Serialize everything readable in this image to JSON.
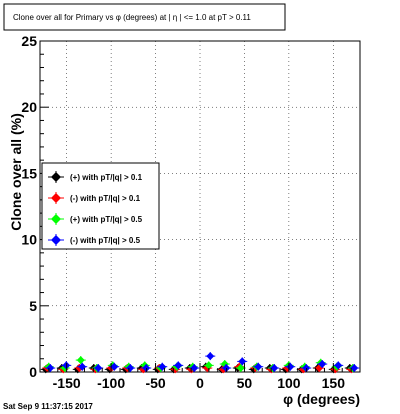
{
  "chart_data": {
    "type": "scatter",
    "title": "Clone  over all for Primary vs φ (degrees) at | η | <= 1.0 at pT > 0.11",
    "xlabel": "φ (degrees)",
    "ylabel": "Clone  over all (%)",
    "xlim": [
      -180,
      180
    ],
    "ylim": [
      0,
      25
    ],
    "x_ticks": [
      -150,
      -100,
      -50,
      0,
      50,
      100,
      150
    ],
    "y_ticks": [
      0,
      5,
      10,
      15,
      20,
      25
    ],
    "grid": "dotted vertical and horizontal",
    "legend_position": "left-center",
    "series": [
      {
        "name": "(+) with pT/|q| > 0.1",
        "color": "#000000",
        "x": [
          -171,
          -153,
          -135,
          -117,
          -99,
          -81,
          -63,
          -45,
          -27,
          -9,
          9,
          27,
          45,
          63,
          81,
          99,
          117,
          135,
          153,
          171
        ],
        "y": [
          0.2,
          0.3,
          0.2,
          0.3,
          0.2,
          0.2,
          0.3,
          0.2,
          0.2,
          0.3,
          0.4,
          0.2,
          0.3,
          0.2,
          0.3,
          0.2,
          0.2,
          0.3,
          0.2,
          0.3
        ]
      },
      {
        "name": "(-) with pT/|q| > 0.1",
        "color": "#ff0000",
        "x": [
          -171,
          -153,
          -135,
          -117,
          -99,
          -81,
          -63,
          -45,
          -27,
          -9,
          9,
          27,
          45,
          63,
          81,
          99,
          117,
          135,
          153,
          171
        ],
        "y": [
          0.3,
          0.2,
          0.3,
          0.2,
          0.3,
          0.3,
          0.2,
          0.3,
          0.2,
          0.2,
          0.3,
          0.2,
          0.4,
          0.3,
          0.2,
          0.3,
          0.2,
          0.3,
          0.2,
          0.2
        ]
      },
      {
        "name": "(+) with pT/|q| > 0.5",
        "color": "#00ff00",
        "x": [
          -171,
          -153,
          -135,
          -117,
          -99,
          -81,
          -63,
          -45,
          -27,
          -9,
          9,
          27,
          45,
          63,
          81,
          99,
          117,
          135,
          153,
          171
        ],
        "y": [
          0.4,
          0.3,
          0.9,
          0.3,
          0.5,
          0.4,
          0.5,
          0.3,
          0.4,
          0.4,
          0.5,
          0.6,
          0.3,
          0.4,
          0.3,
          0.5,
          0.4,
          0.7,
          0.4,
          0.3
        ]
      },
      {
        "name": "(-) with pT/|q| > 0.5",
        "color": "#0000ff",
        "x": [
          -171,
          -153,
          -135,
          -117,
          -99,
          -81,
          -63,
          -45,
          -27,
          -9,
          9,
          27,
          45,
          63,
          81,
          99,
          117,
          135,
          153,
          171
        ],
        "y": [
          0.3,
          0.5,
          0.4,
          0.3,
          0.4,
          0.3,
          0.3,
          0.4,
          0.5,
          0.3,
          1.2,
          0.3,
          0.8,
          0.4,
          0.3,
          0.4,
          0.3,
          0.6,
          0.5,
          0.3
        ]
      }
    ]
  },
  "footer": {
    "timestamp": "Sat Sep  9 11:37:15 2017"
  }
}
